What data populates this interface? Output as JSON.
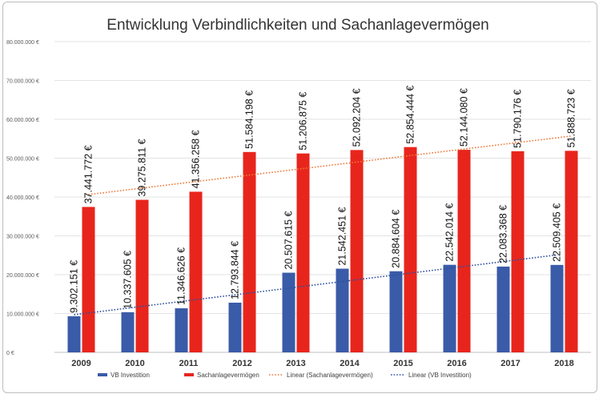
{
  "chart_data": {
    "type": "bar",
    "title": "Entwicklung Verbindlichkeiten und Sachanlagevermögen",
    "categories": [
      "2009",
      "2010",
      "2011",
      "2012",
      "2013",
      "2014",
      "2015",
      "2016",
      "2017",
      "2018"
    ],
    "series": [
      {
        "name": "VB Investition",
        "color": "#3a5ba8",
        "values": [
          9302151,
          10337605,
          11346626,
          12793844,
          20507615,
          21542451,
          20884604,
          22542014,
          22083368,
          22509405
        ],
        "labels": [
          "9.302.151 €",
          "10.337.605 €",
          "11.346.626 €",
          "12.793.844 €",
          "20.507.615 €",
          "21.542.451 €",
          "20.884.604 €",
          "22.542.014 €",
          "22.083.368 €",
          "22.509.405 €"
        ]
      },
      {
        "name": "Sachanlagevermögen",
        "color": "#e8251c",
        "values": [
          37441772,
          39275811,
          41356258,
          51584198,
          51206875,
          52092204,
          52854444,
          52144080,
          51790176,
          51888723
        ],
        "labels": [
          "37.441.772 €",
          "39.275.811 €",
          "41.356.258 €",
          "51.584.198 €",
          "51.206.875 €",
          "52.092.204 €",
          "52.854.444 €",
          "52.144.080 €",
          "51.790.176 €",
          "51.888.723 €"
        ]
      }
    ],
    "trendlines": [
      {
        "name": "Linear (Sachanlagevermögen)",
        "color": "#f0793a",
        "style": "dotted",
        "series_index": 1
      },
      {
        "name": "Linear (VB Investition)",
        "color": "#2f4f9e",
        "style": "dotted",
        "series_index": 0
      }
    ],
    "ylim": [
      0,
      80000000
    ],
    "yticks": [
      0,
      10000000,
      20000000,
      30000000,
      40000000,
      50000000,
      60000000,
      70000000,
      80000000
    ],
    "ytick_labels": [
      "0 €",
      "10.000.000 €",
      "20.000.000 €",
      "30.000.000 €",
      "40.000.000 €",
      "50.000.000 €",
      "60.000.000 €",
      "70.000.000 €",
      "80.000.000 €"
    ],
    "grid": true,
    "legend_position": "bottom",
    "xlabel": "",
    "ylabel": ""
  }
}
